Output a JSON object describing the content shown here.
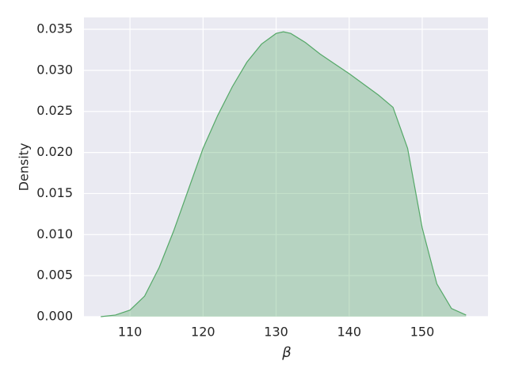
{
  "chart_data": {
    "type": "kde",
    "xlabel": "β",
    "ylabel": "Density",
    "x": [
      106,
      108,
      110,
      112,
      114,
      116,
      118,
      120,
      122,
      124,
      126,
      128,
      130,
      131,
      132,
      134,
      136,
      138,
      140,
      142,
      144,
      146,
      148,
      150,
      152,
      154,
      156
    ],
    "series": [
      {
        "color": "#55a868",
        "values": [
          0,
          0.0002,
          0.0008,
          0.0025,
          0.006,
          0.0105,
          0.0155,
          0.0205,
          0.0245,
          0.028,
          0.031,
          0.0332,
          0.0345,
          0.0347,
          0.0345,
          0.0334,
          0.032,
          0.0308,
          0.0296,
          0.0283,
          0.027,
          0.0255,
          0.0205,
          0.0108,
          0.004,
          0.001,
          0.0002
        ]
      }
    ],
    "xlim": [
      103.7,
      159
    ],
    "ylim": [
      0,
      0.03645
    ],
    "xticks": [
      110,
      120,
      130,
      140,
      150
    ],
    "yticks": [
      {
        "value": 0,
        "label": "0.000"
      },
      {
        "value": 0.005,
        "label": "0.005"
      },
      {
        "value": 0.01,
        "label": "0.010"
      },
      {
        "value": 0.015,
        "label": "0.015"
      },
      {
        "value": 0.02,
        "label": "0.020"
      },
      {
        "value": 0.025,
        "label": "0.025"
      },
      {
        "value": 0.03,
        "label": "0.030"
      },
      {
        "value": 0.035,
        "label": "0.035"
      }
    ],
    "grid": true,
    "background": "#eaeaf2",
    "fill_opacity": 0.35
  }
}
